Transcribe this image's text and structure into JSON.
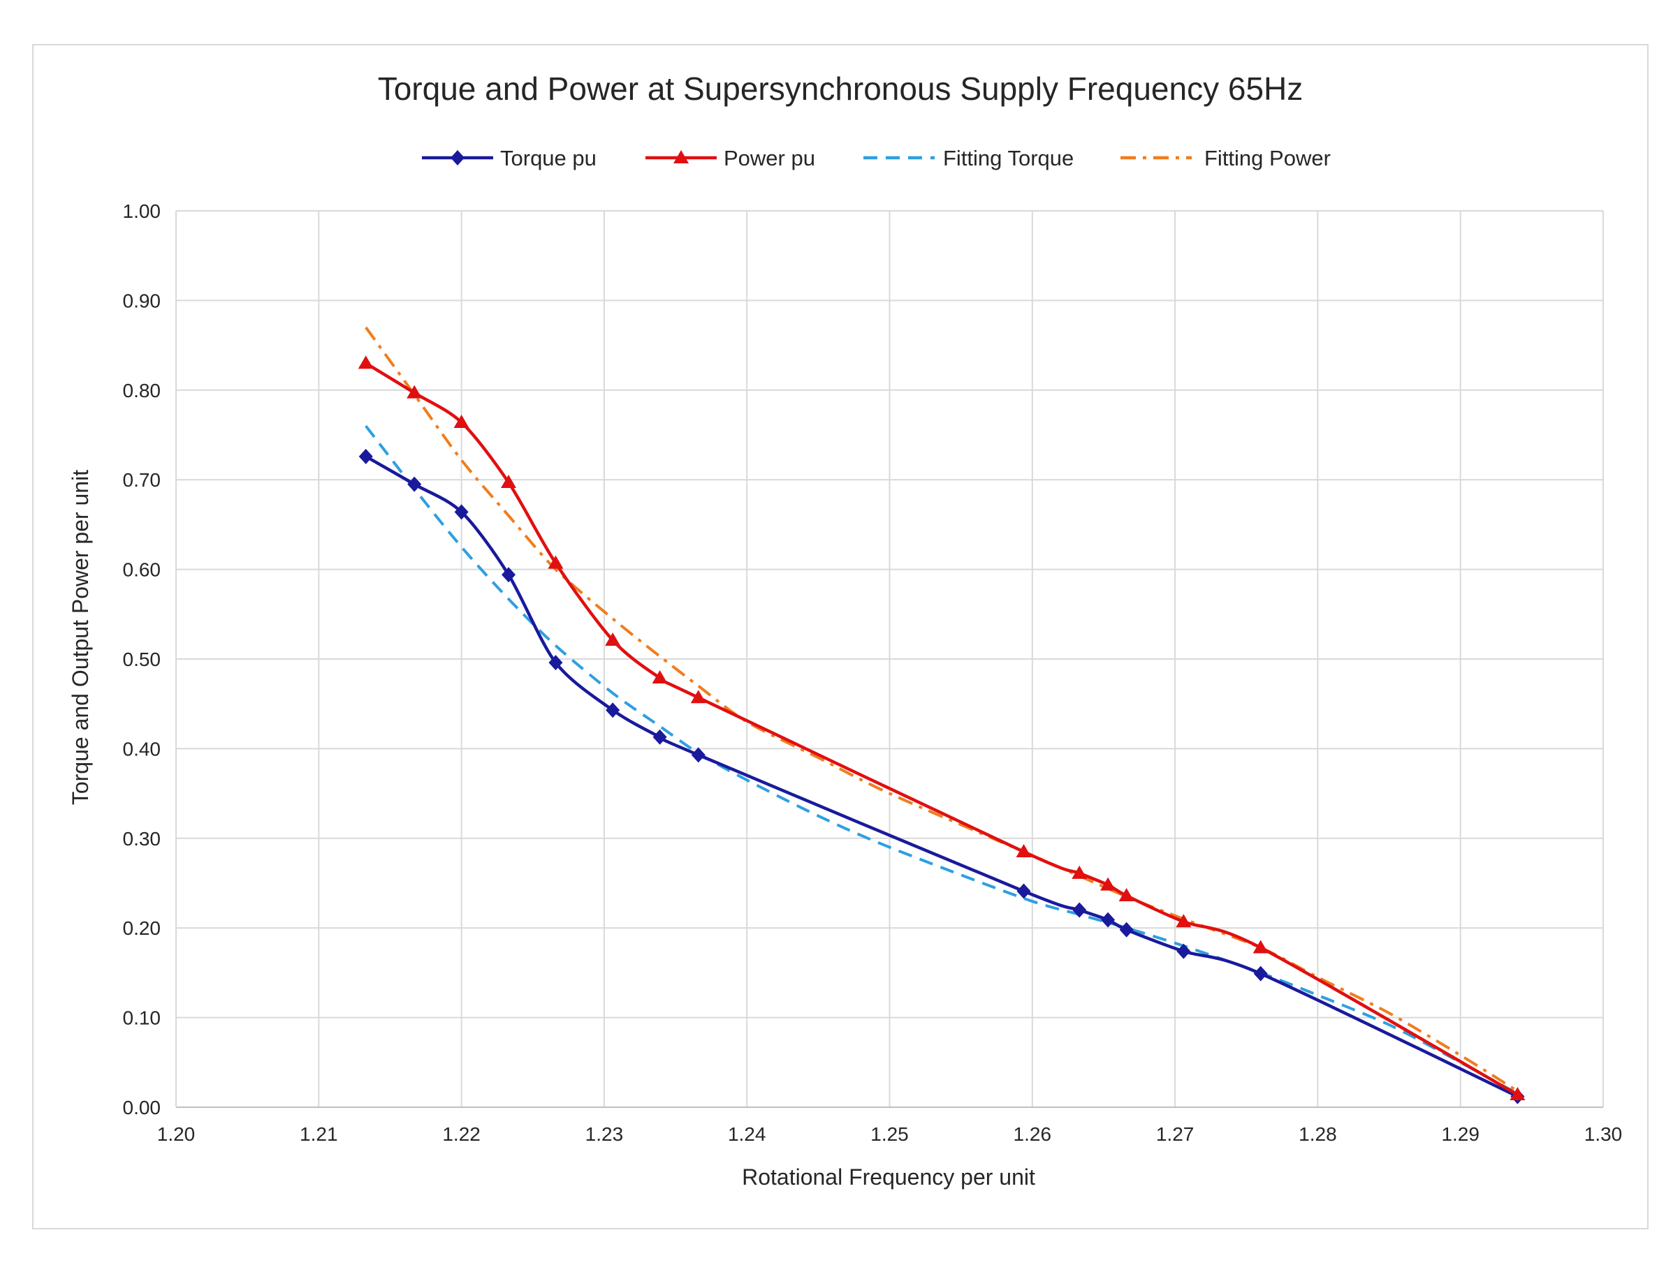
{
  "chart_data": {
    "type": "line",
    "title": "Torque and Power at Supersynchronous  Supply Frequency 65Hz",
    "xlabel": "Rotational Frequency per unit",
    "ylabel": "Torque and Output Power per unit",
    "xlim": [
      1.2,
      1.3
    ],
    "ylim": [
      0.0,
      1.0
    ],
    "xticks": [
      1.2,
      1.21,
      1.22,
      1.23,
      1.24,
      1.25,
      1.26,
      1.27,
      1.28,
      1.29,
      1.3
    ],
    "yticks": [
      0.0,
      0.1,
      0.2,
      0.3,
      0.4,
      0.5,
      0.6,
      0.7,
      0.8,
      0.9,
      1.0
    ],
    "xtick_labels": [
      "1.20",
      "1.21",
      "1.22",
      "1.23",
      "1.24",
      "1.25",
      "1.26",
      "1.27",
      "1.28",
      "1.29",
      "1.30"
    ],
    "ytick_labels": [
      "0.00",
      "0.10",
      "0.20",
      "0.30",
      "0.40",
      "0.50",
      "0.60",
      "0.70",
      "0.80",
      "0.90",
      "1.00"
    ],
    "grid": true,
    "legend_position": "top-center",
    "series": [
      {
        "name": "Torque pu",
        "color": "#1a1a9c",
        "line_style": "solid",
        "marker": "diamond",
        "x": [
          1.2133,
          1.2167,
          1.22,
          1.2233,
          1.2266,
          1.2306,
          1.2339,
          1.2366,
          1.2594,
          1.2633,
          1.2653,
          1.2666,
          1.2706,
          1.276,
          1.294
        ],
        "y": [
          0.726,
          0.695,
          0.664,
          0.594,
          0.496,
          0.443,
          0.413,
          0.393,
          0.241,
          0.22,
          0.209,
          0.198,
          0.174,
          0.149,
          0.012
        ]
      },
      {
        "name": "Power pu",
        "color": "#e01010",
        "line_style": "solid",
        "marker": "triangle",
        "x": [
          1.2133,
          1.2167,
          1.22,
          1.2233,
          1.2266,
          1.2306,
          1.2339,
          1.2366,
          1.2594,
          1.2633,
          1.2653,
          1.2666,
          1.2706,
          1.276,
          1.294
        ],
        "y": [
          0.83,
          0.797,
          0.764,
          0.697,
          0.607,
          0.521,
          0.479,
          0.457,
          0.285,
          0.261,
          0.248,
          0.236,
          0.207,
          0.178,
          0.014
        ]
      },
      {
        "name": "Fitting Torque",
        "color": "#2e9fe0",
        "line_style": "dash",
        "marker": "none",
        "x": [
          1.2133,
          1.2167,
          1.22,
          1.2233,
          1.2266,
          1.2306,
          1.2339,
          1.2366,
          1.24,
          1.245,
          1.25,
          1.2594,
          1.2633,
          1.2666,
          1.2706,
          1.276,
          1.28,
          1.285,
          1.29,
          1.294
        ],
        "y": [
          0.76,
          0.69,
          0.625,
          0.567,
          0.515,
          0.462,
          0.425,
          0.395,
          0.365,
          0.325,
          0.29,
          0.233,
          0.215,
          0.2,
          0.18,
          0.15,
          0.125,
          0.092,
          0.05,
          0.015
        ]
      },
      {
        "name": "Fitting Power",
        "color": "#f07d1e",
        "line_style": "dashdot",
        "marker": "none",
        "x": [
          1.2133,
          1.2167,
          1.22,
          1.2233,
          1.2266,
          1.2306,
          1.2339,
          1.2366,
          1.24,
          1.245,
          1.25,
          1.2594,
          1.2633,
          1.2666,
          1.2706,
          1.276,
          1.28,
          1.285,
          1.29,
          1.294
        ],
        "y": [
          0.87,
          0.795,
          0.722,
          0.66,
          0.6,
          0.545,
          0.503,
          0.47,
          0.43,
          0.39,
          0.35,
          0.285,
          0.258,
          0.235,
          0.21,
          0.178,
          0.145,
          0.105,
          0.058,
          0.018
        ]
      }
    ]
  }
}
